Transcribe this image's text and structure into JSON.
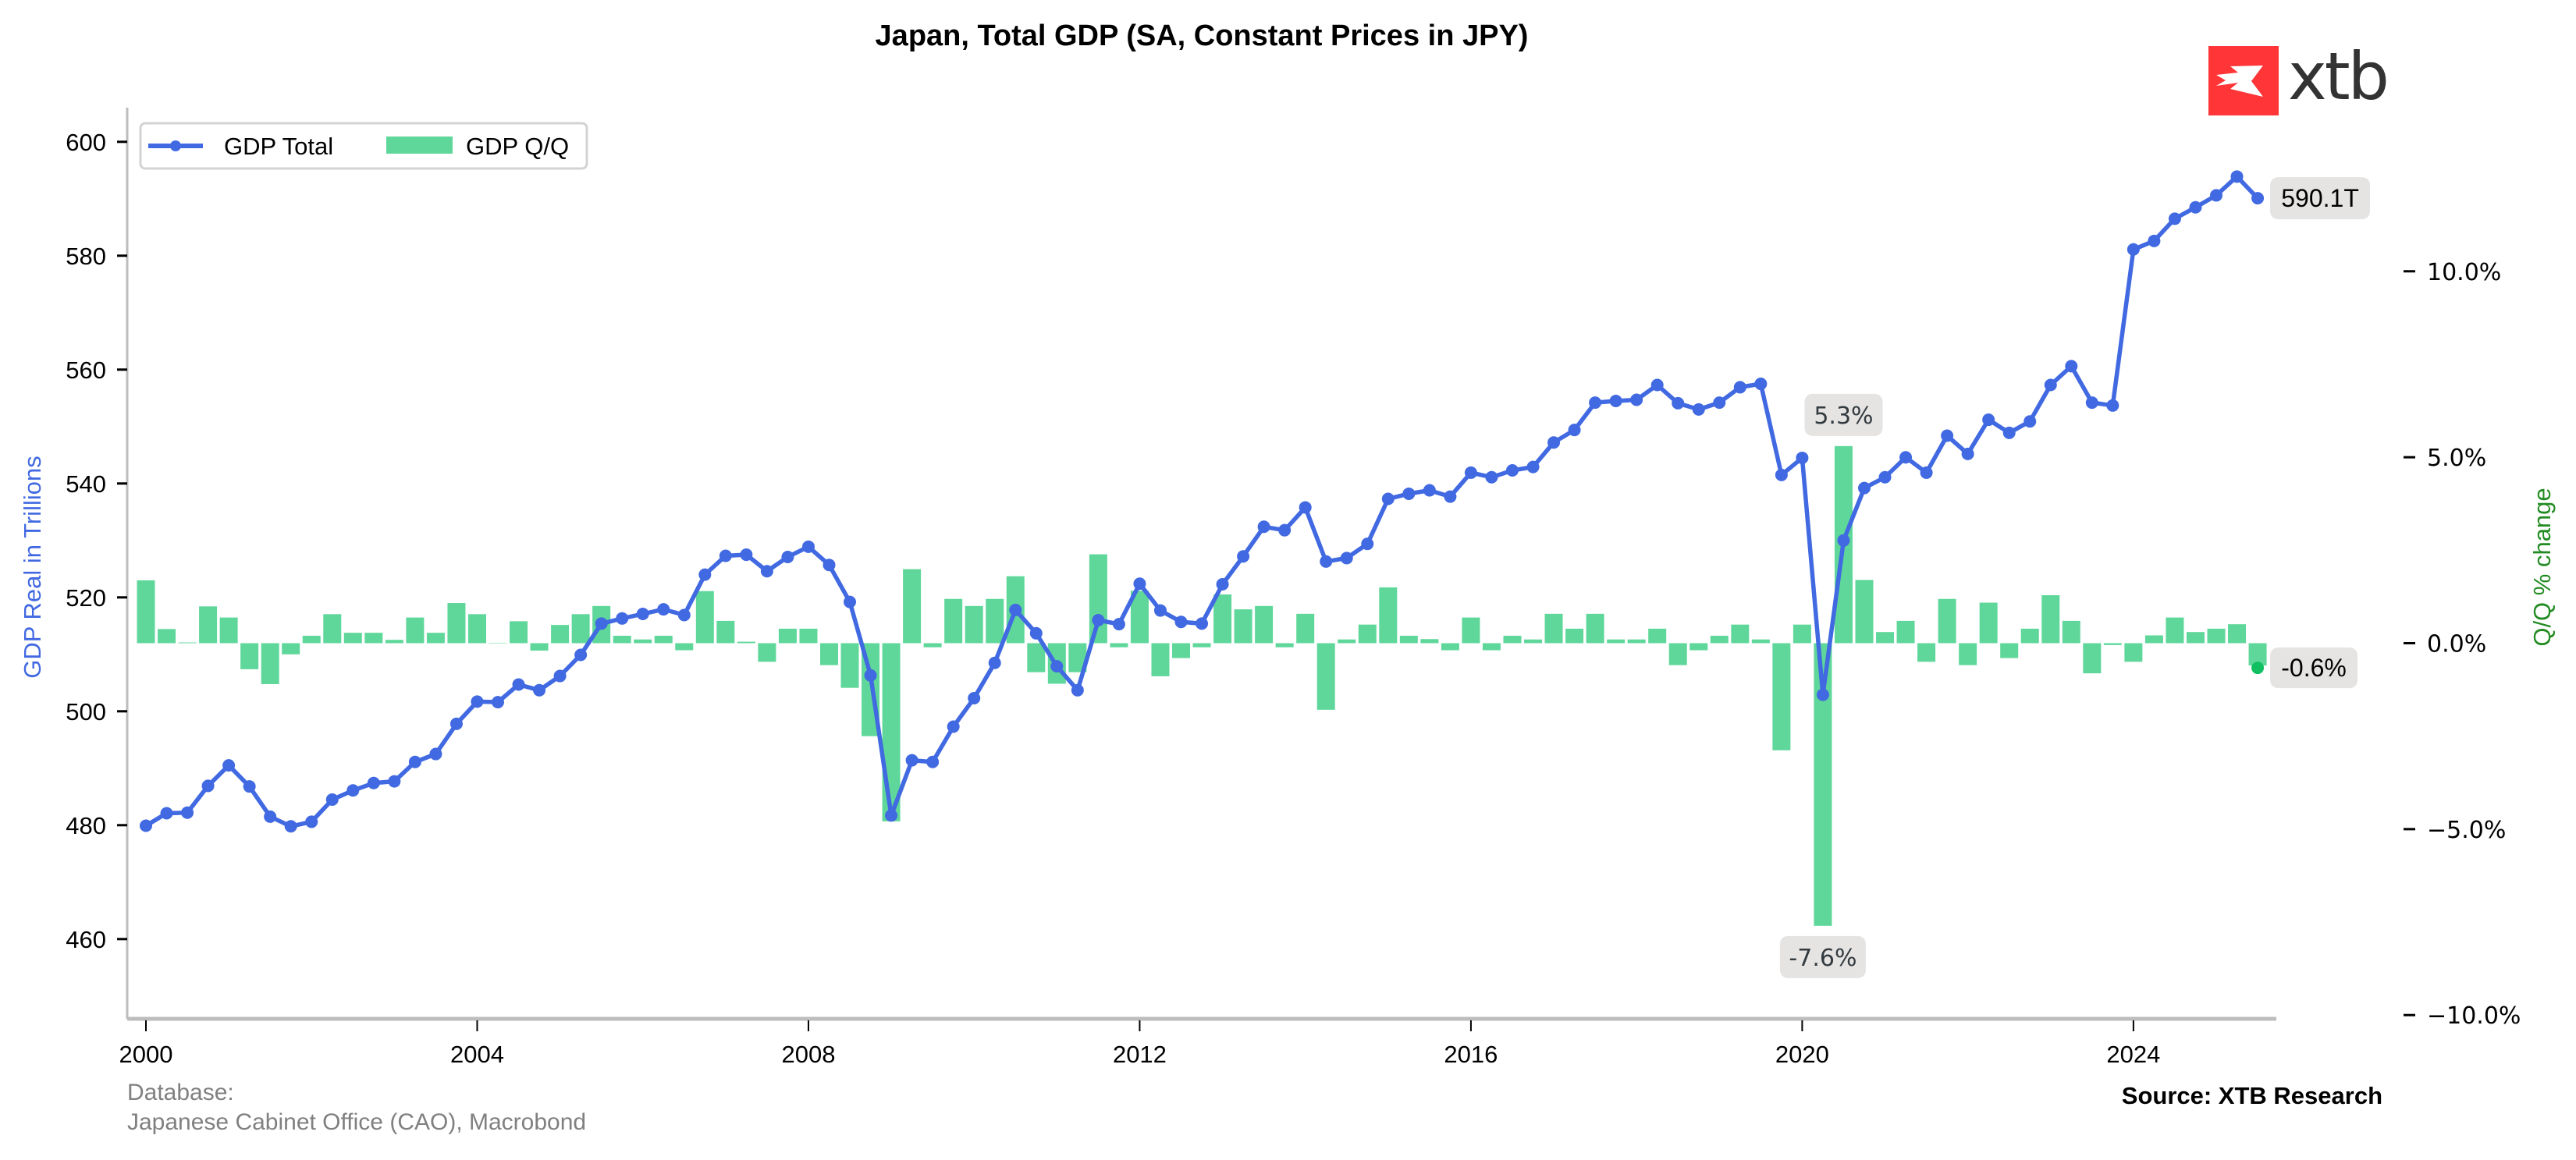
{
  "chart_data": {
    "type": "line+bar",
    "title": "Japan, Total GDP (SA, Constant Prices in JPY)",
    "xlabel": "",
    "ylabel_left": "GDP Real in Trillions",
    "ylabel_right": "Q/Q % change",
    "x_ticks": [
      "2000",
      "2004",
      "2008",
      "2012",
      "2016",
      "2020",
      "2024"
    ],
    "y_left_ticks": [
      "460",
      "480",
      "500",
      "520",
      "540",
      "560",
      "580",
      "600"
    ],
    "y_right_ticks": [
      "−10.0%",
      "−5.0%",
      "0.0%",
      "5.0%",
      "10.0%"
    ],
    "ylim_left": [
      446,
      606
    ],
    "ylim_right": [
      -10.1,
      14.4
    ],
    "xlim": [
      "1999Q4",
      "2025Q4"
    ],
    "grid": false,
    "legend_position": "top-left",
    "x_start": "2000Q1",
    "frequency": "quarterly",
    "series": [
      {
        "name": "GDP Total",
        "type": "line",
        "axis": "left",
        "color": "#4169e1",
        "marker": "circle",
        "values": [
          479.9,
          482.1,
          482.2,
          486.9,
          490.5,
          486.8,
          481.5,
          479.8,
          480.6,
          484.5,
          486.1,
          487.4,
          487.7,
          491.1,
          492.5,
          497.8,
          501.7,
          501.6,
          504.7,
          503.7,
          506.2,
          509.9,
          515.4,
          516.3,
          517.1,
          517.9,
          516.9,
          524.0,
          527.3,
          527.5,
          524.6,
          527.1,
          528.9,
          525.7,
          519.2,
          506.3,
          481.7,
          491.4,
          491.1,
          497.3,
          502.3,
          508.5,
          517.8,
          513.7,
          507.9,
          503.7,
          516.0,
          515.3,
          522.4,
          517.7,
          515.7,
          515.4,
          522.3,
          527.2,
          532.4,
          531.8,
          535.8,
          526.3,
          526.9,
          529.4,
          537.3,
          538.2,
          538.8,
          537.7,
          541.9,
          541.1,
          542.3,
          542.9,
          547.2,
          549.4,
          554.2,
          554.5,
          554.7,
          557.3,
          554.1,
          553.0,
          554.2,
          556.9,
          557.5,
          541.5,
          544.5,
          502.9,
          530.0,
          539.2,
          541.1,
          544.6,
          541.9,
          548.4,
          545.2,
          551.2,
          548.9,
          550.9,
          557.3,
          560.6,
          554.2,
          553.7,
          581.1,
          582.6,
          586.5,
          588.5,
          590.6,
          593.9,
          590.1
        ]
      },
      {
        "name": "GDP Q/Q",
        "type": "bar",
        "axis": "right",
        "color": "#5fd79a",
        "unit": "%",
        "values": [
          1.69,
          0.38,
          0.02,
          0.99,
          0.69,
          -0.7,
          -1.1,
          -0.3,
          0.2,
          0.78,
          0.28,
          0.28,
          0.09,
          0.69,
          0.28,
          1.08,
          0.78,
          0.0,
          0.59,
          -0.2,
          0.49,
          0.78,
          1.0,
          0.2,
          0.1,
          0.2,
          -0.19,
          1.4,
          0.6,
          0.04,
          -0.5,
          0.39,
          0.39,
          -0.59,
          -1.2,
          -2.5,
          -4.79,
          1.99,
          -0.11,
          1.19,
          1.0,
          1.19,
          1.8,
          -0.78,
          -1.09,
          -0.78,
          2.39,
          -0.11,
          1.41,
          -0.89,
          -0.4,
          -0.11,
          1.31,
          0.91,
          1.0,
          -0.11,
          0.79,
          -1.79,
          0.1,
          0.5,
          1.5,
          0.2,
          0.11,
          -0.19,
          0.69,
          -0.19,
          0.2,
          0.1,
          0.79,
          0.39,
          0.79,
          0.1,
          0.1,
          0.39,
          -0.59,
          -0.19,
          0.2,
          0.5,
          0.1,
          -2.88,
          0.5,
          -7.6,
          5.3,
          1.7,
          0.3,
          0.6,
          -0.5,
          1.19,
          -0.59,
          1.09,
          -0.4,
          0.39,
          1.29,
          0.6,
          -0.81,
          -0.05,
          -0.5,
          0.21,
          0.69,
          0.3,
          0.39,
          0.51,
          -0.6
        ]
      }
    ],
    "annotations": [
      {
        "text": "590.1T",
        "series": "GDP Total",
        "index": 102,
        "style": "last-value"
      },
      {
        "text": "-0.6%",
        "series": "GDP Q/Q",
        "index": 102,
        "style": "last-value"
      },
      {
        "text": "5.3%",
        "series": "GDP Q/Q",
        "index": 82,
        "style": "max"
      },
      {
        "text": "-7.6%",
        "series": "GDP Q/Q",
        "index": 81,
        "style": "min"
      }
    ]
  },
  "legend": {
    "items": [
      {
        "label": "GDP Total",
        "color": "#4169e1"
      },
      {
        "label": "GDP Q/Q",
        "color": "#5fd79a"
      }
    ]
  },
  "footer": {
    "database_label": "Database:",
    "database_value": "Japanese Cabinet Office (CAO), Macrobond",
    "source": "Source: XTB Research"
  },
  "logo": {
    "text": "xtb",
    "brand_color": "#ff3538"
  },
  "colors": {
    "line": "#4169e1",
    "bar": "#5fd79a",
    "last_dot": "#10c060",
    "left_axis_title": "#4169e1",
    "right_axis_title": "#228b22",
    "annotation_bg": "#e5e4e2",
    "axis_line": "#bdbdbd"
  }
}
